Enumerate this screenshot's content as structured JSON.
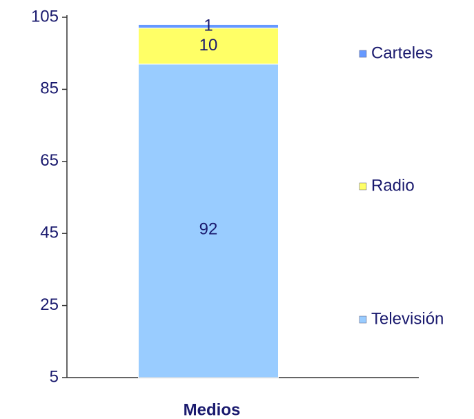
{
  "chart_data": {
    "type": "stacked_bar",
    "categories": [
      "Medios"
    ],
    "series": [
      {
        "name": "Televisión",
        "color": "#99ccff",
        "values": [
          92
        ]
      },
      {
        "name": "Radio",
        "color": "#ffff66",
        "values": [
          10
        ]
      },
      {
        "name": "Carteles",
        "color": "#6699ff",
        "values": [
          1
        ]
      }
    ],
    "ylim": [
      5,
      105
    ],
    "yticks": [
      5,
      25,
      45,
      65,
      85,
      105
    ],
    "legend": "right"
  }
}
